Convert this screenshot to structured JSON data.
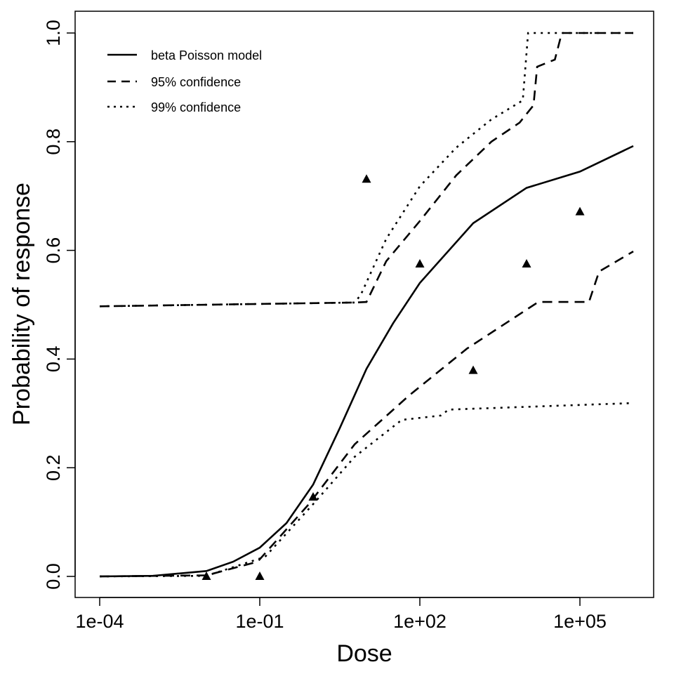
{
  "chart_data": {
    "type": "line",
    "title": "",
    "xlabel": "Dose",
    "ylabel": "Probability of response",
    "x_scale": "log10",
    "xlim": [
      0.0001,
      1000000
    ],
    "ylim": [
      0,
      1
    ],
    "grid": false,
    "legend_position": "top-left",
    "x_ticks": [
      {
        "value": 0.0001,
        "label": "1e-04"
      },
      {
        "value": 0.1,
        "label": "1e-01"
      },
      {
        "value": 100,
        "label": "1e+02"
      },
      {
        "value": 100000,
        "label": "1e+05"
      }
    ],
    "y_ticks": [
      {
        "value": 0,
        "label": "0.0"
      },
      {
        "value": 0.2,
        "label": "0.2"
      },
      {
        "value": 0.4,
        "label": "0.4"
      },
      {
        "value": 0.6,
        "label": "0.6"
      },
      {
        "value": 0.8,
        "label": "0.8"
      },
      {
        "value": 1,
        "label": "1.0"
      }
    ],
    "series": [
      {
        "name": "beta Poisson model",
        "style": "solid",
        "x": [
          0.0001,
          0.001,
          0.01,
          0.0316,
          0.1,
          0.316,
          1,
          3.16,
          10,
          31.6,
          100,
          1000,
          10000,
          100000,
          1000000
        ],
        "y": [
          0.0,
          0.001,
          0.01,
          0.027,
          0.053,
          0.098,
          0.169,
          0.273,
          0.382,
          0.466,
          0.54,
          0.65,
          0.715,
          0.745,
          0.792
        ]
      },
      {
        "name": "95% confidence",
        "style": "dashed",
        "bound": "upper",
        "x": [
          0.0001,
          6,
          10,
          23.4,
          100,
          480,
          2190,
          7400,
          13500,
          15800,
          33900,
          45700,
          1000000
        ],
        "y": [
          0.497,
          0.504,
          0.505,
          0.58,
          0.654,
          0.738,
          0.8,
          0.835,
          0.867,
          0.938,
          0.951,
          1.0,
          1.0
        ]
      },
      {
        "name": "95% confidence",
        "style": "dashed",
        "bound": "lower",
        "x": [
          0.0001,
          0.01,
          0.091,
          0.85,
          6,
          63,
          760,
          16600,
          148000,
          229000,
          1000000
        ],
        "y": [
          0.0,
          0.002,
          0.027,
          0.134,
          0.243,
          0.333,
          0.419,
          0.505,
          0.505,
          0.561,
          0.598
        ]
      },
      {
        "name": "99% confidence",
        "style": "dotted",
        "bound": "upper",
        "x": [
          0.0001,
          6,
          7.8,
          23.4,
          100,
          480,
          2190,
          8500,
          10700,
          1000000
        ],
        "y": [
          0.497,
          0.504,
          0.518,
          0.621,
          0.718,
          0.789,
          0.841,
          0.876,
          1.0,
          1.0
        ]
      },
      {
        "name": "99% confidence",
        "style": "dotted",
        "bound": "lower",
        "x": [
          0.0001,
          0.01,
          0.126,
          1.02,
          6,
          45.7,
          245,
          347,
          1000000
        ],
        "y": [
          0.0,
          0.001,
          0.036,
          0.134,
          0.22,
          0.288,
          0.296,
          0.307,
          0.319
        ]
      }
    ],
    "observed_points": {
      "marker": "triangle",
      "x": [
        0.01,
        0.1,
        1,
        10,
        100,
        1000,
        10000,
        100000
      ],
      "y": [
        0.0,
        0.0,
        0.146,
        0.731,
        0.575,
        0.379,
        0.575,
        0.671
      ]
    },
    "legend": [
      {
        "label": "beta Poisson model",
        "style": "solid"
      },
      {
        "label": "95% confidence",
        "style": "dashed"
      },
      {
        "label": "99% confidence",
        "style": "dotted"
      }
    ]
  }
}
